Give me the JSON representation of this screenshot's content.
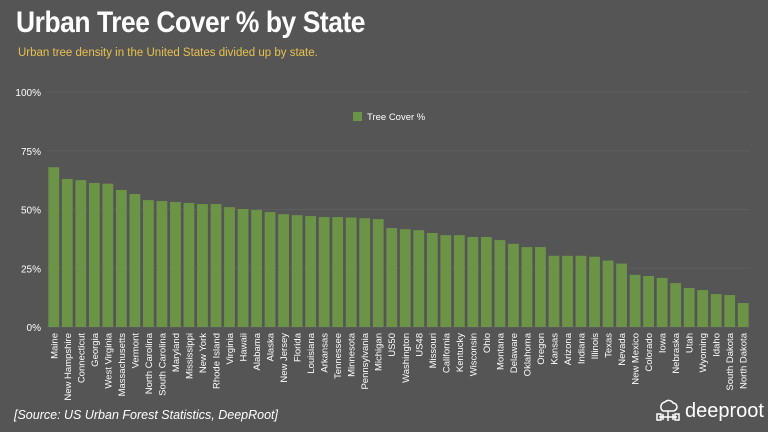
{
  "chart_data": {
    "type": "bar",
    "title": "Urban Tree Cover % by State",
    "subtitle": "Urban tree density in the United States divided up by state.",
    "source": "[Source: US Urban Forest Statistics, DeepRoot]",
    "xlabel": "",
    "ylabel": "",
    "ylim": [
      0,
      100
    ],
    "yticks": [
      0,
      25,
      50,
      75,
      100
    ],
    "ytick_labels": [
      "0%",
      "25%",
      "50%",
      "75%",
      "100%"
    ],
    "grid": true,
    "legend_position": "top-center",
    "bar_color": "#6b9447",
    "categories": [
      "Maine",
      "New Hampshire",
      "Connecticut",
      "Georgia",
      "West Virginia",
      "Massachusetts",
      "Vermont",
      "North Carolina",
      "South Carolina",
      "Maryland",
      "Mississippi",
      "New York",
      "Rhode Island",
      "Virginia",
      "Hawaii",
      "Alabama",
      "Alaska",
      "New Jersey",
      "Florida",
      "Louisiana",
      "Arkansas",
      "Tennessee",
      "Minnesota",
      "Pennsylvania",
      "Michigan",
      "US50",
      "Washington",
      "US48",
      "Missouri",
      "California",
      "Kentucky",
      "Wisconsin",
      "Ohio",
      "Montana",
      "Delaware",
      "Oklahoma",
      "Oregon",
      "Kansas",
      "Arizona",
      "Indiana",
      "Illinois",
      "Texas",
      "Nevada",
      "New Mexico",
      "Colorado",
      "Iowa",
      "Nebraska",
      "Utah",
      "Wyoming",
      "Idaho",
      "South Dakota",
      "North Dakota"
    ],
    "series": [
      {
        "name": "Tree Cover %",
        "values": [
          68,
          63,
          62.5,
          61.3,
          61,
          58.3,
          56.6,
          54,
          53.6,
          53.2,
          52.8,
          52.3,
          52.3,
          51,
          50.2,
          49.8,
          48.9,
          48,
          47.6,
          47.2,
          46.8,
          46.8,
          46.6,
          46.3,
          45.9,
          42.1,
          41.6,
          41.2,
          40,
          39.1,
          39.1,
          38.3,
          38.3,
          37,
          35.4,
          34,
          34,
          30.3,
          30.3,
          30.3,
          29.9,
          28.3,
          27,
          22.2,
          21.7,
          20.9,
          18.7,
          16.6,
          15.7,
          14,
          13.6,
          10.2
        ]
      }
    ]
  },
  "brand": {
    "logo_text": "deeproot"
  }
}
